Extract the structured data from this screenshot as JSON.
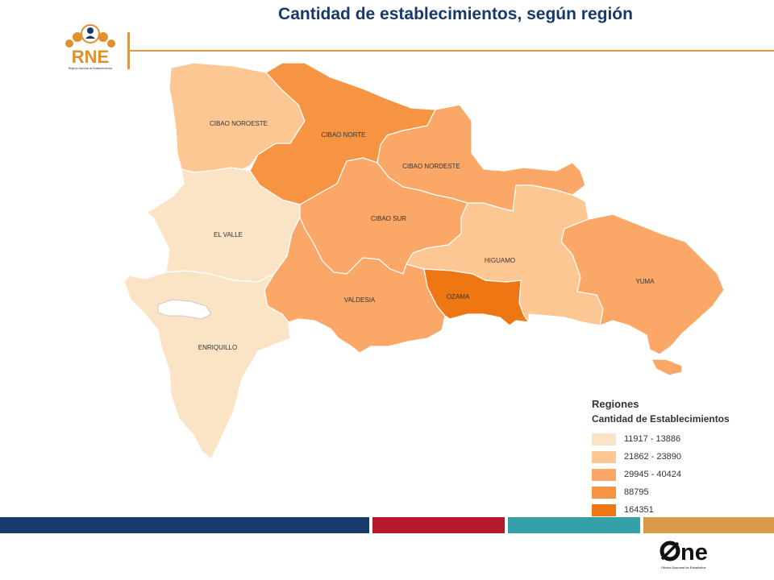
{
  "title": "Cantidad de establecimientos, según región",
  "logo_rne": {
    "text": "RNE",
    "subtitle": "Registro Nacional de Establecimientos"
  },
  "logo_one": {
    "text": "ne",
    "subtitle": "Oficina Nacional de Estadística"
  },
  "colors": {
    "class1": "#fbe3c6",
    "class2": "#fcc793",
    "class3": "#fba768",
    "class4": "#f79443",
    "class5": "#ee7714",
    "title": "#173a6b",
    "accent_line": "#d89a4a",
    "bar_navy": "#173a6b",
    "bar_red": "#b5192b",
    "bar_teal": "#35a0a7",
    "bar_orange": "#d89a4a"
  },
  "regions": [
    {
      "name": "CIBAO NOROESTE",
      "class": 2
    },
    {
      "name": "CIBAO NORTE",
      "class": 4
    },
    {
      "name": "CIBAO NORDESTE",
      "class": 3
    },
    {
      "name": "CIBAO SUR",
      "class": 3
    },
    {
      "name": "EL VALLE",
      "class": 1
    },
    {
      "name": "ENRIQUILLO",
      "class": 1
    },
    {
      "name": "VALDESIA",
      "class": 3
    },
    {
      "name": "OZAMA",
      "class": 5
    },
    {
      "name": "HIGUAMO",
      "class": 2
    },
    {
      "name": "YUMA",
      "class": 3
    }
  ],
  "legend": {
    "title": "Regiones",
    "subtitle": "Cantidad de Establecimientos",
    "items": [
      {
        "label": "11917 - 13886",
        "color": "#fbe3c6"
      },
      {
        "label": "21862 - 23890",
        "color": "#fcc793"
      },
      {
        "label": "29945 - 40424",
        "color": "#fba768"
      },
      {
        "label": "88795",
        "color": "#f79443"
      },
      {
        "label": "164351",
        "color": "#ee7714"
      }
    ]
  }
}
